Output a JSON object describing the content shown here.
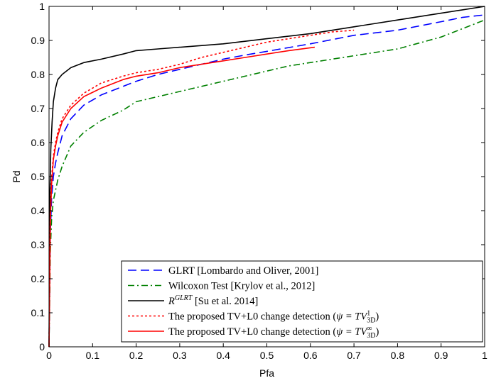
{
  "chart_data": {
    "type": "line",
    "title": "",
    "xlabel": "Pfa",
    "ylabel": "Pd",
    "xlim": [
      0,
      1
    ],
    "ylim": [
      0,
      1
    ],
    "grid": false,
    "legend_position": "bottom-right",
    "x_ticks": [
      "0",
      "0.1",
      "0.2",
      "0.3",
      "0.4",
      "0.5",
      "0.6",
      "0.7",
      "0.8",
      "0.9",
      "1"
    ],
    "y_ticks": [
      "0",
      "0.1",
      "0.2",
      "0.3",
      "0.4",
      "0.5",
      "0.6",
      "0.7",
      "0.8",
      "0.9",
      "1"
    ],
    "series": [
      {
        "name": "GLRT [Lombardo and Oliver, 2001]",
        "legend_main": "GLRT [Lombardo and Oliver, 2001]",
        "color": "#0000ff",
        "dash": "12,6",
        "x": [
          0,
          0.003,
          0.006,
          0.01,
          0.015,
          0.02,
          0.03,
          0.05,
          0.08,
          0.12,
          0.17,
          0.2,
          0.25,
          0.3,
          0.35,
          0.4,
          0.45,
          0.5,
          0.6,
          0.7,
          0.8,
          0.9,
          0.95,
          1
        ],
        "y": [
          0,
          0.33,
          0.44,
          0.5,
          0.54,
          0.57,
          0.62,
          0.67,
          0.71,
          0.74,
          0.765,
          0.78,
          0.8,
          0.815,
          0.83,
          0.845,
          0.857,
          0.868,
          0.89,
          0.915,
          0.93,
          0.955,
          0.968,
          0.975
        ]
      },
      {
        "name": "Wilcoxon Test [Krylov et al., 2012]",
        "legend_main": "Wilcoxon Test [Krylov et al., 2012]",
        "color": "#008000",
        "dash": "9,4,2,4",
        "x": [
          0,
          0.003,
          0.006,
          0.01,
          0.015,
          0.02,
          0.03,
          0.05,
          0.08,
          0.12,
          0.17,
          0.2,
          0.25,
          0.3,
          0.35,
          0.4,
          0.45,
          0.5,
          0.55,
          0.6,
          0.7,
          0.8,
          0.9,
          0.95,
          1
        ],
        "y": [
          0,
          0.28,
          0.38,
          0.43,
          0.46,
          0.49,
          0.53,
          0.59,
          0.63,
          0.665,
          0.695,
          0.72,
          0.735,
          0.75,
          0.765,
          0.78,
          0.795,
          0.81,
          0.825,
          0.835,
          0.855,
          0.875,
          0.91,
          0.935,
          0.96
        ]
      },
      {
        "name": "R^GLRT [Su et al. 2014]",
        "legend_main": "R",
        "legend_sup": "GLRT",
        "legend_rest": " [Su et al. 2014]",
        "color": "#000000",
        "dash": "",
        "x": [
          0,
          0.002,
          0.004,
          0.007,
          0.01,
          0.015,
          0.02,
          0.03,
          0.05,
          0.08,
          0.12,
          0.17,
          0.2,
          0.25,
          0.3,
          0.4,
          0.5,
          0.6,
          0.7,
          0.8,
          0.9,
          0.95,
          1
        ],
        "y": [
          0,
          0.45,
          0.58,
          0.66,
          0.72,
          0.76,
          0.785,
          0.8,
          0.82,
          0.835,
          0.845,
          0.86,
          0.87,
          0.875,
          0.88,
          0.89,
          0.905,
          0.92,
          0.94,
          0.96,
          0.98,
          0.99,
          1.0
        ]
      },
      {
        "name": "The proposed TV+L0 change detection (ψ = TV^1_3D)",
        "legend_main": "The proposed TV+L0 change detection (",
        "legend_psi": "ψ = TV",
        "legend_sup": "1",
        "legend_sub": "3D",
        "legend_close": ")",
        "color": "#ff0000",
        "dash": "3,3",
        "x": [
          0,
          0.003,
          0.006,
          0.01,
          0.015,
          0.02,
          0.03,
          0.05,
          0.08,
          0.12,
          0.17,
          0.2,
          0.25,
          0.3,
          0.35,
          0.4,
          0.45,
          0.5,
          0.55,
          0.6,
          0.65,
          0.7
        ],
        "y": [
          0,
          0.38,
          0.5,
          0.56,
          0.6,
          0.63,
          0.67,
          0.71,
          0.745,
          0.775,
          0.795,
          0.805,
          0.815,
          0.83,
          0.85,
          0.865,
          0.88,
          0.895,
          0.905,
          0.915,
          0.925,
          0.93
        ]
      },
      {
        "name": "The proposed TV+L0 change detection (ψ = TV^∞_3D)",
        "legend_main": "The proposed TV+L0 change detection (",
        "legend_psi": "ψ = TV",
        "legend_sup": "∞",
        "legend_sub": "3D",
        "legend_close": ")",
        "color": "#ff0000",
        "dash": "",
        "x": [
          0,
          0.003,
          0.006,
          0.01,
          0.015,
          0.02,
          0.03,
          0.05,
          0.08,
          0.12,
          0.17,
          0.2,
          0.25,
          0.3,
          0.35,
          0.4,
          0.45,
          0.5,
          0.55,
          0.61
        ],
        "y": [
          0,
          0.37,
          0.48,
          0.55,
          0.59,
          0.62,
          0.66,
          0.7,
          0.735,
          0.76,
          0.785,
          0.795,
          0.805,
          0.82,
          0.83,
          0.84,
          0.85,
          0.86,
          0.87,
          0.88
        ]
      }
    ]
  }
}
